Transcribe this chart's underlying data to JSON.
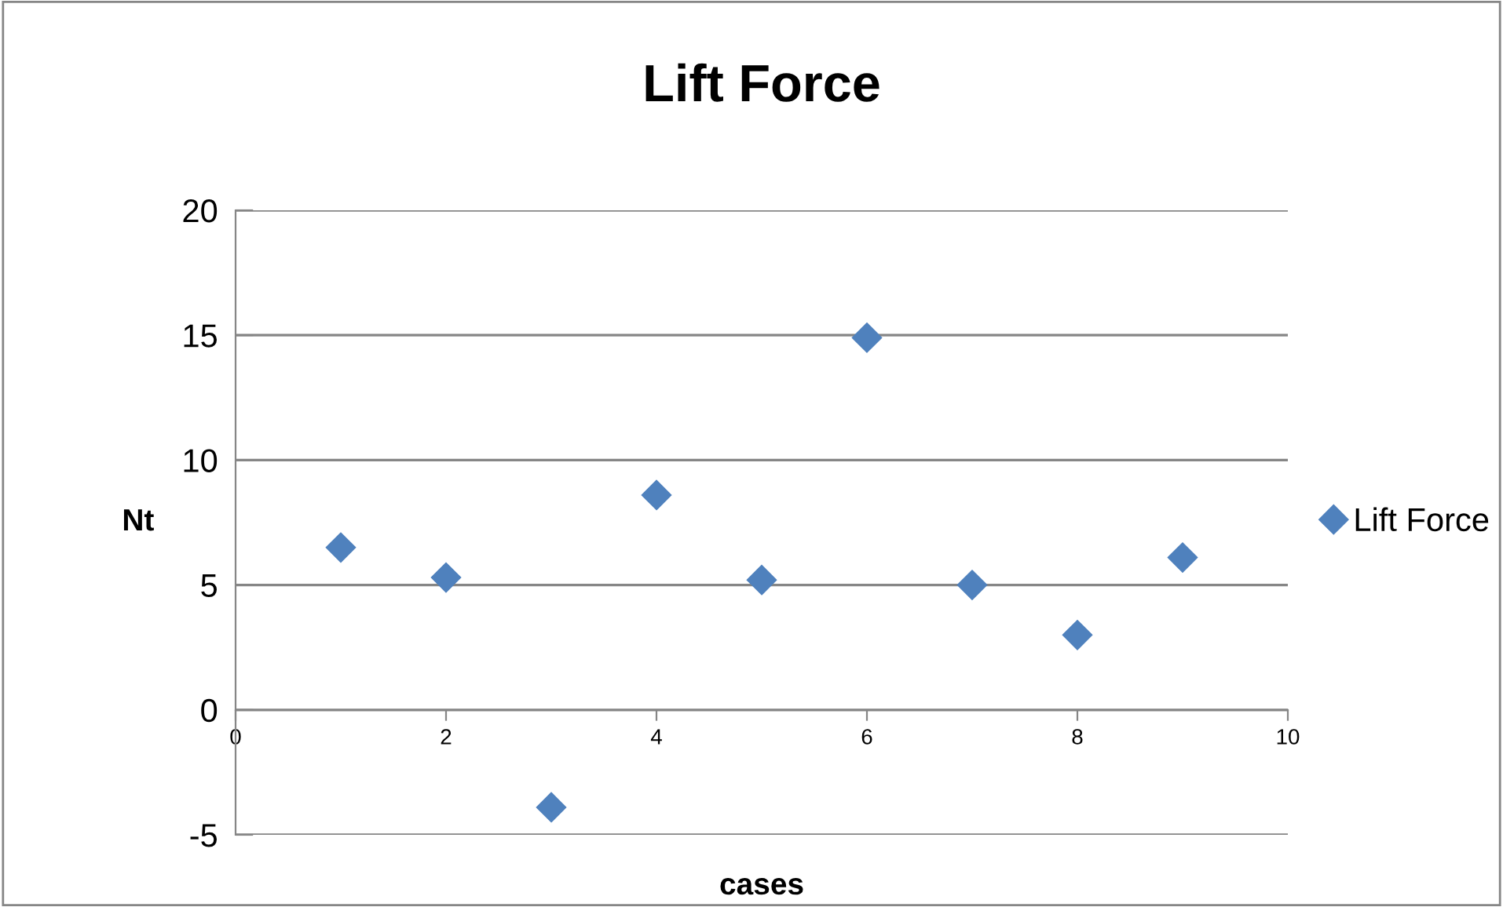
{
  "chart_data": {
    "type": "scatter",
    "title": "Lift Force",
    "xlabel": "cases",
    "ylabel": "Nt",
    "x": [
      1,
      2,
      3,
      4,
      5,
      6,
      7,
      8,
      9
    ],
    "series": [
      {
        "name": "Lift Force",
        "color": "#4f81bd",
        "values": [
          6.5,
          5.3,
          -3.9,
          8.6,
          5.2,
          14.9,
          5.0,
          3.0,
          6.1
        ]
      }
    ],
    "xlim": [
      0,
      10
    ],
    "xticks": [
      0,
      2,
      4,
      6,
      8,
      10
    ],
    "ylim": [
      -5,
      20
    ],
    "yticks": [
      -5,
      0,
      5,
      10,
      15,
      20
    ],
    "grid": "y",
    "legend": "right",
    "marker": "diamond"
  }
}
